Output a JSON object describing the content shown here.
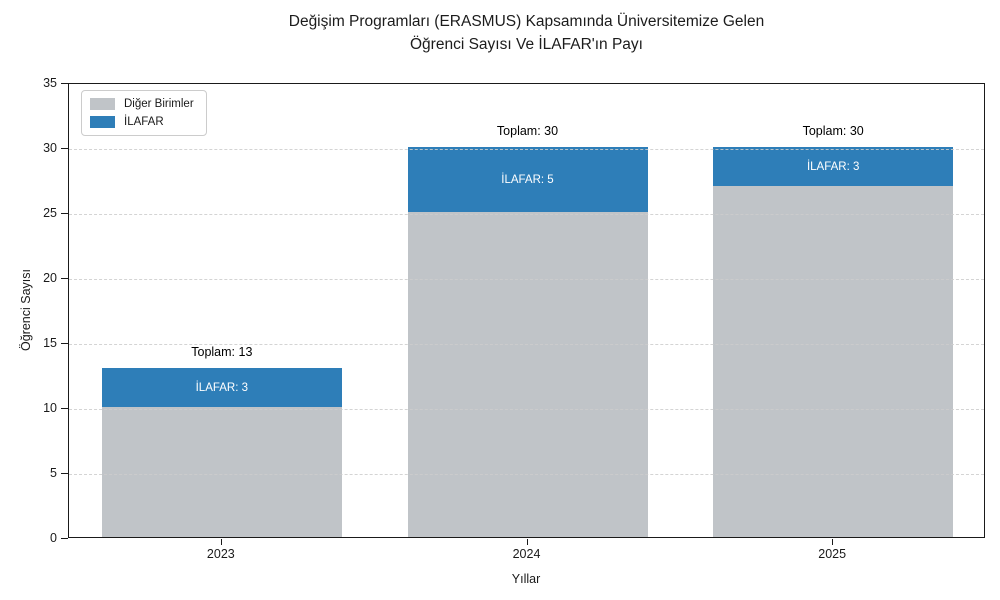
{
  "chart_data": {
    "type": "bar",
    "stacked": true,
    "title_lines": [
      "Değişim Programları (ERASMUS) Kapsamında Üniversitemize Gelen",
      "Öğrenci Sayısı Ve İLAFAR'ın Payı"
    ],
    "title": "Değişim Programları (ERASMUS) Kapsamında Üniversitemize Gelen Öğrenci Sayısı Ve İLAFAR'ın Payı",
    "categories": [
      "2023",
      "2024",
      "2025"
    ],
    "series": [
      {
        "name": "Diğer Birimler",
        "color": "#c0c4c8",
        "values": [
          10,
          25,
          27
        ]
      },
      {
        "name": "İLAFAR",
        "color": "#2e7eb8",
        "values": [
          3,
          5,
          3
        ]
      }
    ],
    "totals": [
      13,
      30,
      30
    ],
    "annotations": {
      "total_labels": [
        "Toplam: 13",
        "Toplam: 30",
        "Toplam: 30"
      ],
      "ilafar_labels": [
        "İLAFAR: 3",
        "İLAFAR: 5",
        "İLAFAR: 3"
      ]
    },
    "xlabel": "Yıllar",
    "ylabel": "Öğrenci Sayısı",
    "ylim": [
      0,
      35
    ],
    "yticks": [
      0,
      5,
      10,
      15,
      20,
      25,
      30,
      35
    ],
    "grid": "horizontal-dashed",
    "grid_over_bars": true,
    "legend_position": "upper-left",
    "text_color": "#1a1a1a",
    "spine_color": "#1a1a1a",
    "background": "#ffffff"
  }
}
